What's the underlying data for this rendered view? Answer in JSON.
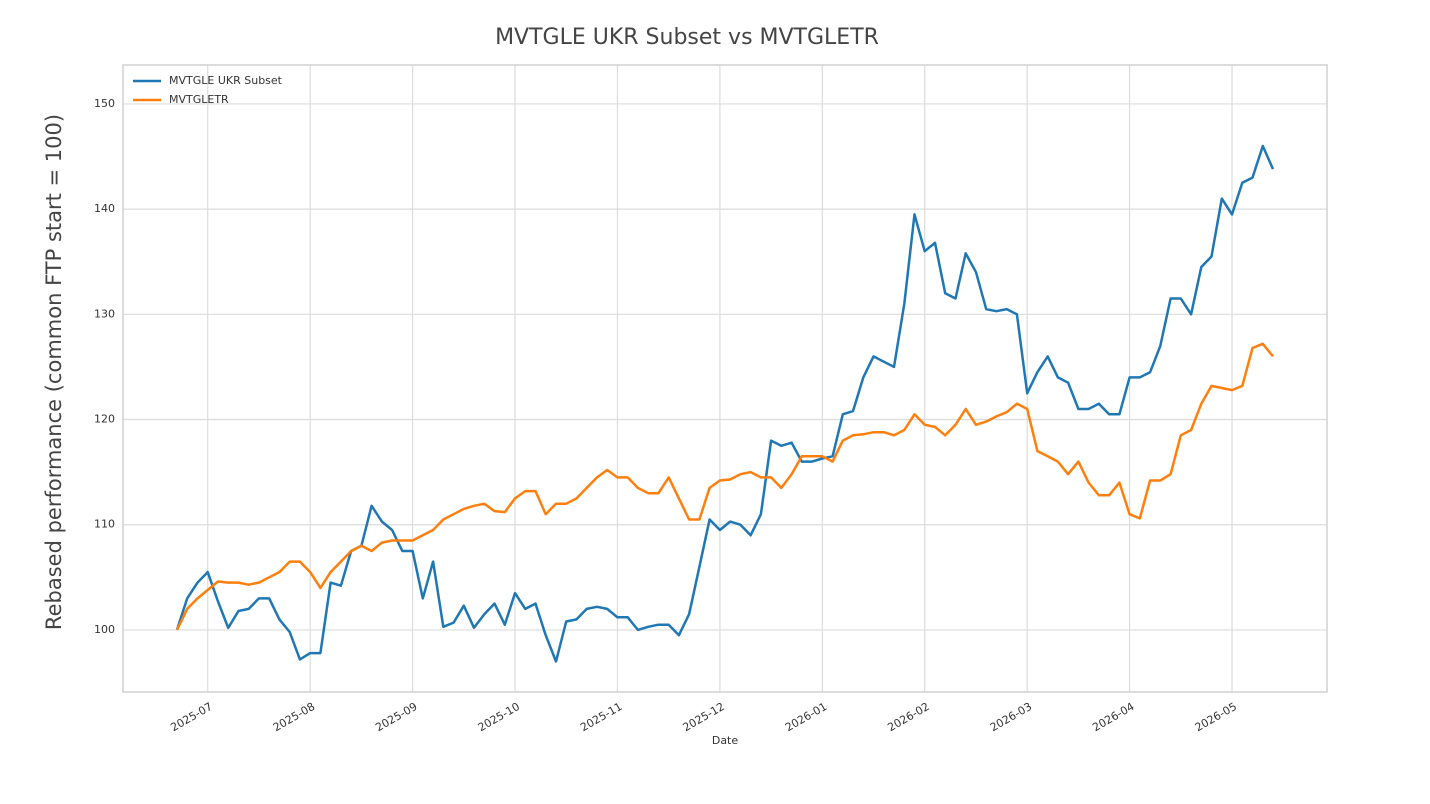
{
  "chart_data": {
    "type": "line",
    "title": "MVTGLE UKR Subset vs MVTGLETR",
    "x_label": "Date",
    "y_label": "Rebased performance (common FTP start = 100)",
    "x": [
      null,
      null,
      null,
      "2025-07",
      null,
      null,
      null,
      null,
      null,
      null,
      null,
      null,
      null,
      "2025-08",
      null,
      null,
      null,
      null,
      null,
      null,
      null,
      null,
      null,
      "2025-09",
      null,
      null,
      null,
      null,
      null,
      null,
      null,
      null,
      null,
      "2025-10",
      null,
      null,
      null,
      null,
      null,
      null,
      null,
      null,
      null,
      "2025-11",
      null,
      null,
      null,
      null,
      null,
      null,
      null,
      null,
      null,
      "2025-12",
      null,
      null,
      null,
      null,
      null,
      null,
      null,
      null,
      null,
      "2026-01",
      null,
      null,
      null,
      null,
      null,
      null,
      null,
      null,
      null,
      "2026-02",
      null,
      null,
      null,
      null,
      null,
      null,
      null,
      null,
      null,
      "2026-03",
      null,
      null,
      null,
      null,
      null,
      null,
      null,
      null,
      null,
      "2026-04",
      null,
      null,
      null,
      null,
      null,
      null,
      null,
      null,
      null,
      "2026-05",
      null,
      null,
      null,
      null
    ],
    "series": [
      {
        "name": "MVTGLE UKR Subset",
        "color": "#1f77b4",
        "values": [
          100,
          103,
          104.5,
          105.5,
          102.7,
          100.2,
          101.8,
          102,
          103,
          103,
          101,
          99.8,
          97.2,
          97.8,
          97.8,
          104.5,
          104.2,
          107.5,
          108,
          111.8,
          110.3,
          109.5,
          107.5,
          107.5,
          103,
          106.5,
          100.3,
          100.7,
          102.3,
          100.2,
          101.5,
          102.5,
          100.5,
          103.5,
          102,
          102.5,
          99.5,
          97,
          100.8,
          101,
          102,
          102.2,
          102,
          101.2,
          101.2,
          100,
          100.3,
          100.5,
          100.5,
          99.5,
          101.5,
          106,
          110.5,
          109.5,
          110.3,
          110,
          109,
          111,
          118,
          117.5,
          117.8,
          116,
          116,
          116.3,
          116.5,
          120.5,
          120.8,
          124,
          126,
          125.5,
          125,
          131,
          139.5,
          136,
          136.8,
          132,
          131.5,
          135.8,
          134,
          130.5,
          130.3,
          130.5,
          130,
          122.5,
          124.5,
          126,
          124,
          123.5,
          121,
          121,
          121.5,
          120.5,
          120.5,
          124,
          124,
          124.5,
          127,
          131.5,
          131.5,
          130,
          134.5,
          135.5,
          141,
          139.5,
          142.5,
          143,
          146,
          143.8
        ]
      },
      {
        "name": "MVTGLETR",
        "color": "#ff7f0e",
        "values": [
          100,
          102,
          103,
          103.8,
          104.6,
          104.5,
          104.5,
          104.3,
          104.5,
          105,
          105.5,
          106.5,
          106.5,
          105.5,
          104,
          105.5,
          106.5,
          107.5,
          108,
          107.5,
          108.3,
          108.5,
          108.5,
          108.5,
          109,
          109.5,
          110.5,
          111,
          111.5,
          111.8,
          112,
          111.3,
          111.2,
          112.5,
          113.2,
          113.2,
          111,
          112,
          112,
          112.5,
          113.5,
          114.5,
          115.2,
          114.5,
          114.5,
          113.5,
          113,
          113,
          114.5,
          112.5,
          110.5,
          110.5,
          113.5,
          114.2,
          114.3,
          114.8,
          115,
          114.5,
          114.5,
          113.5,
          114.8,
          116.5,
          116.5,
          116.5,
          116,
          118,
          118.5,
          118.6,
          118.8,
          118.8,
          118.5,
          119,
          120.5,
          119.5,
          119.3,
          118.5,
          119.5,
          121,
          119.5,
          119.8,
          120.3,
          120.7,
          121.5,
          121,
          117,
          116.5,
          116,
          114.8,
          116,
          114,
          112.8,
          112.8,
          114,
          111,
          110.6,
          114.2,
          114.2,
          114.8,
          118.5,
          119,
          121.5,
          123.2,
          123,
          122.8,
          123.2,
          126.8,
          127.2,
          126
        ]
      }
    ],
    "ylim": [
      94.1,
      153.7
    ],
    "yticks": [
      100,
      110,
      120,
      130,
      140,
      150
    ],
    "grid": true,
    "legend": "upper left"
  }
}
